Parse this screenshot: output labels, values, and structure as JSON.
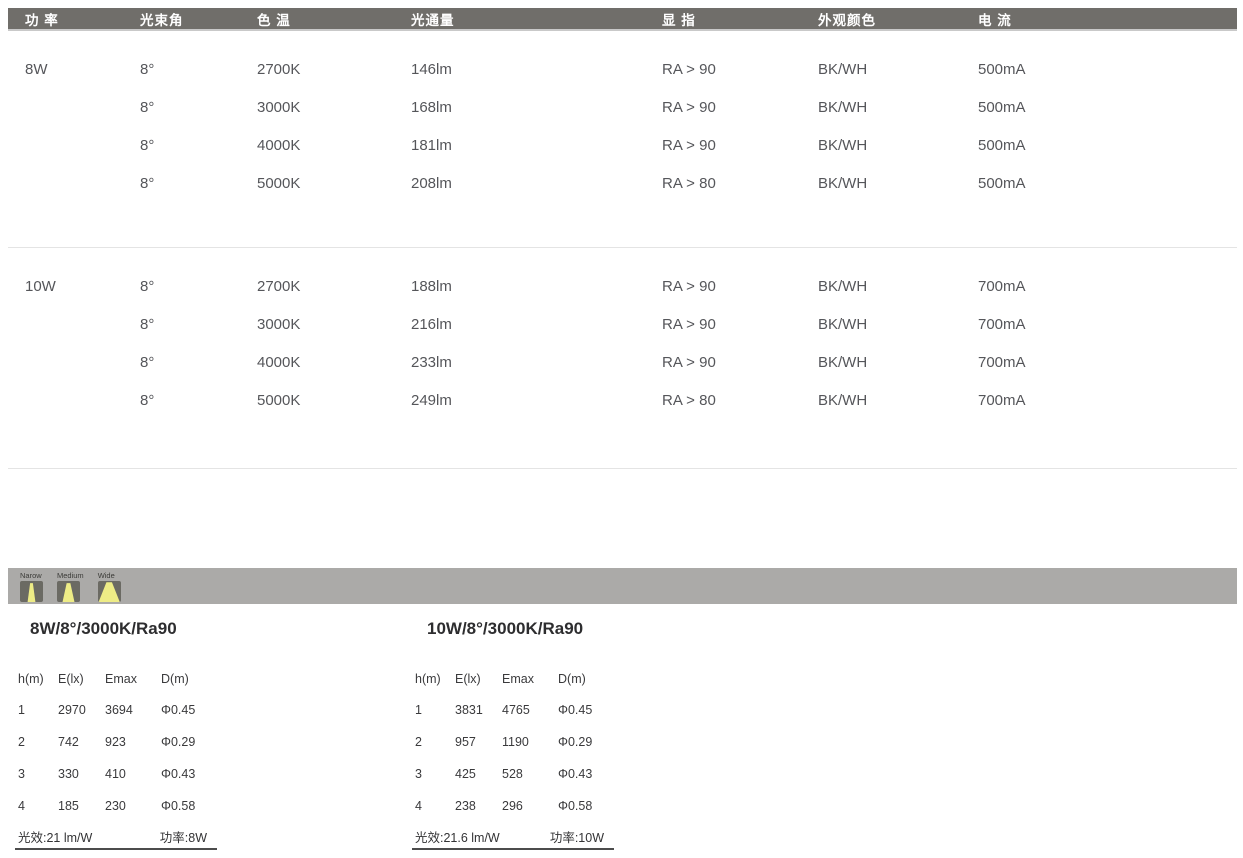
{
  "spec_table": {
    "headers": [
      "功 率",
      "光束角",
      "色 温",
      "光通量",
      "显 指",
      "外观颜色",
      "电 流"
    ],
    "groups": [
      {
        "power": "8W",
        "rows": [
          {
            "beam": "8°",
            "cct": "2700K",
            "flux": "146lm",
            "cri": "RA > 90",
            "finish": "BK/WH",
            "current": "500mA"
          },
          {
            "beam": "8°",
            "cct": "3000K",
            "flux": "168lm",
            "cri": "RA > 90",
            "finish": "BK/WH",
            "current": "500mA"
          },
          {
            "beam": "8°",
            "cct": "4000K",
            "flux": "181lm",
            "cri": "RA > 90",
            "finish": "BK/WH",
            "current": "500mA"
          },
          {
            "beam": "8°",
            "cct": "5000K",
            "flux": "208lm",
            "cri": "RA > 80",
            "finish": "BK/WH",
            "current": "500mA"
          }
        ]
      },
      {
        "power": "10W",
        "rows": [
          {
            "beam": "8°",
            "cct": "2700K",
            "flux": "188lm",
            "cri": "RA > 90",
            "finish": "BK/WH",
            "current": "700mA"
          },
          {
            "beam": "8°",
            "cct": "3000K",
            "flux": "216lm",
            "cri": "RA > 90",
            "finish": "BK/WH",
            "current": "700mA"
          },
          {
            "beam": "8°",
            "cct": "4000K",
            "flux": "233lm",
            "cri": "RA > 90",
            "finish": "BK/WH",
            "current": "700mA"
          },
          {
            "beam": "8°",
            "cct": "5000K",
            "flux": "249lm",
            "cri": "RA > 80",
            "finish": "BK/WH",
            "current": "700mA"
          }
        ]
      }
    ]
  },
  "beam_legend": {
    "items": [
      {
        "label": "Narow"
      },
      {
        "label": "Medium"
      },
      {
        "label": "Wide"
      }
    ]
  },
  "photometric_tables": [
    {
      "title": "8W/8°/3000K/Ra90",
      "columns": [
        "h(m)",
        "E(lx)",
        "Emax",
        "D(m)"
      ],
      "rows": [
        [
          "1",
          "2970",
          "3694",
          "Φ0.45"
        ],
        [
          "2",
          "742",
          "923",
          "Φ0.29"
        ],
        [
          "3",
          "330",
          "410",
          "Φ0.43"
        ],
        [
          "4",
          "185",
          "230",
          "Φ0.58"
        ]
      ],
      "efficacy_label": "光效:21 lm/W",
      "power_label": "功率:8W"
    },
    {
      "title": "10W/8°/3000K/Ra90",
      "columns": [
        "h(m)",
        "E(lx)",
        "Emax",
        "D(m)"
      ],
      "rows": [
        [
          "1",
          "3831",
          "4765",
          "Φ0.45"
        ],
        [
          "2",
          "957",
          "1190",
          "Φ0.29"
        ],
        [
          "3",
          "425",
          "528",
          "Φ0.43"
        ],
        [
          "4",
          "238",
          "296",
          "Φ0.58"
        ]
      ],
      "efficacy_label": "光效:21.6 lm/W",
      "power_label": "功率:10W"
    }
  ],
  "colors": {
    "header_bar": "#706e6a",
    "legend_bar": "#abaaa8",
    "beam_yellow": "#eeec86",
    "icon_square": "#6b6a63",
    "divider": "#e4e4e4"
  }
}
